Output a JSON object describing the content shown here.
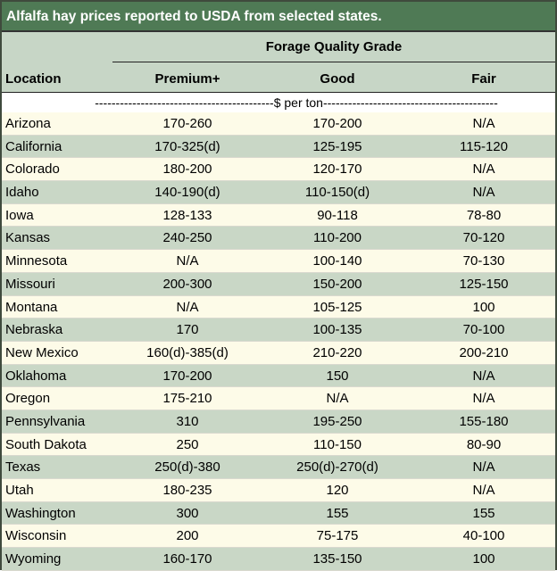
{
  "title": "Alfalfa hay prices reported to USDA from selected states.",
  "header": {
    "location_label": "Location",
    "group_label": "Forage Quality Grade",
    "columns": [
      "Premium+",
      "Good",
      "Fair"
    ]
  },
  "unit_label": "-------------------------------------------$ per ton------------------------------------------",
  "rows": [
    {
      "location": "Arizona",
      "premium": "170-260",
      "good": "170-200",
      "fair": "N/A"
    },
    {
      "location": "California",
      "premium": "170-325(d)",
      "good": "125-195",
      "fair": "115-120"
    },
    {
      "location": "Colorado",
      "premium": "180-200",
      "good": "120-170",
      "fair": "N/A"
    },
    {
      "location": "Idaho",
      "premium": "140-190(d)",
      "good": "110-150(d)",
      "fair": "N/A"
    },
    {
      "location": "Iowa",
      "premium": "128-133",
      "good": "90-118",
      "fair": "78-80"
    },
    {
      "location": "Kansas",
      "premium": "240-250",
      "good": "110-200",
      "fair": "70-120"
    },
    {
      "location": "Minnesota",
      "premium": "N/A",
      "good": "100-140",
      "fair": "70-130"
    },
    {
      "location": "Missouri",
      "premium": "200-300",
      "good": "150-200",
      "fair": "125-150"
    },
    {
      "location": "Montana",
      "premium": "N/A",
      "good": "105-125",
      "fair": "100"
    },
    {
      "location": "Nebraska",
      "premium": "170",
      "good": "100-135",
      "fair": "70-100"
    },
    {
      "location": "New Mexico",
      "premium": "160(d)-385(d)",
      "good": "210-220",
      "fair": "200-210"
    },
    {
      "location": "Oklahoma",
      "premium": "170-200",
      "good": "150",
      "fair": "N/A"
    },
    {
      "location": "Oregon",
      "premium": "175-210",
      "good": "N/A",
      "fair": "N/A"
    },
    {
      "location": "Pennsylvania",
      "premium": "310",
      "good": "195-250",
      "fair": "155-180"
    },
    {
      "location": "South Dakota",
      "premium": "250",
      "good": "110-150",
      "fair": "80-90"
    },
    {
      "location": "Texas",
      "premium": "250(d)-380",
      "good": "250(d)-270(d)",
      "fair": "N/A"
    },
    {
      "location": "Utah",
      "premium": "180-235",
      "good": "120",
      "fair": "N/A"
    },
    {
      "location": "Washington",
      "premium": "300",
      "good": "155",
      "fair": "155"
    },
    {
      "location": "Wisconsin",
      "premium": "200",
      "good": "75-175",
      "fair": "40-100"
    },
    {
      "location": "Wyoming",
      "premium": "160-170",
      "good": "135-150",
      "fair": "100"
    }
  ]
}
